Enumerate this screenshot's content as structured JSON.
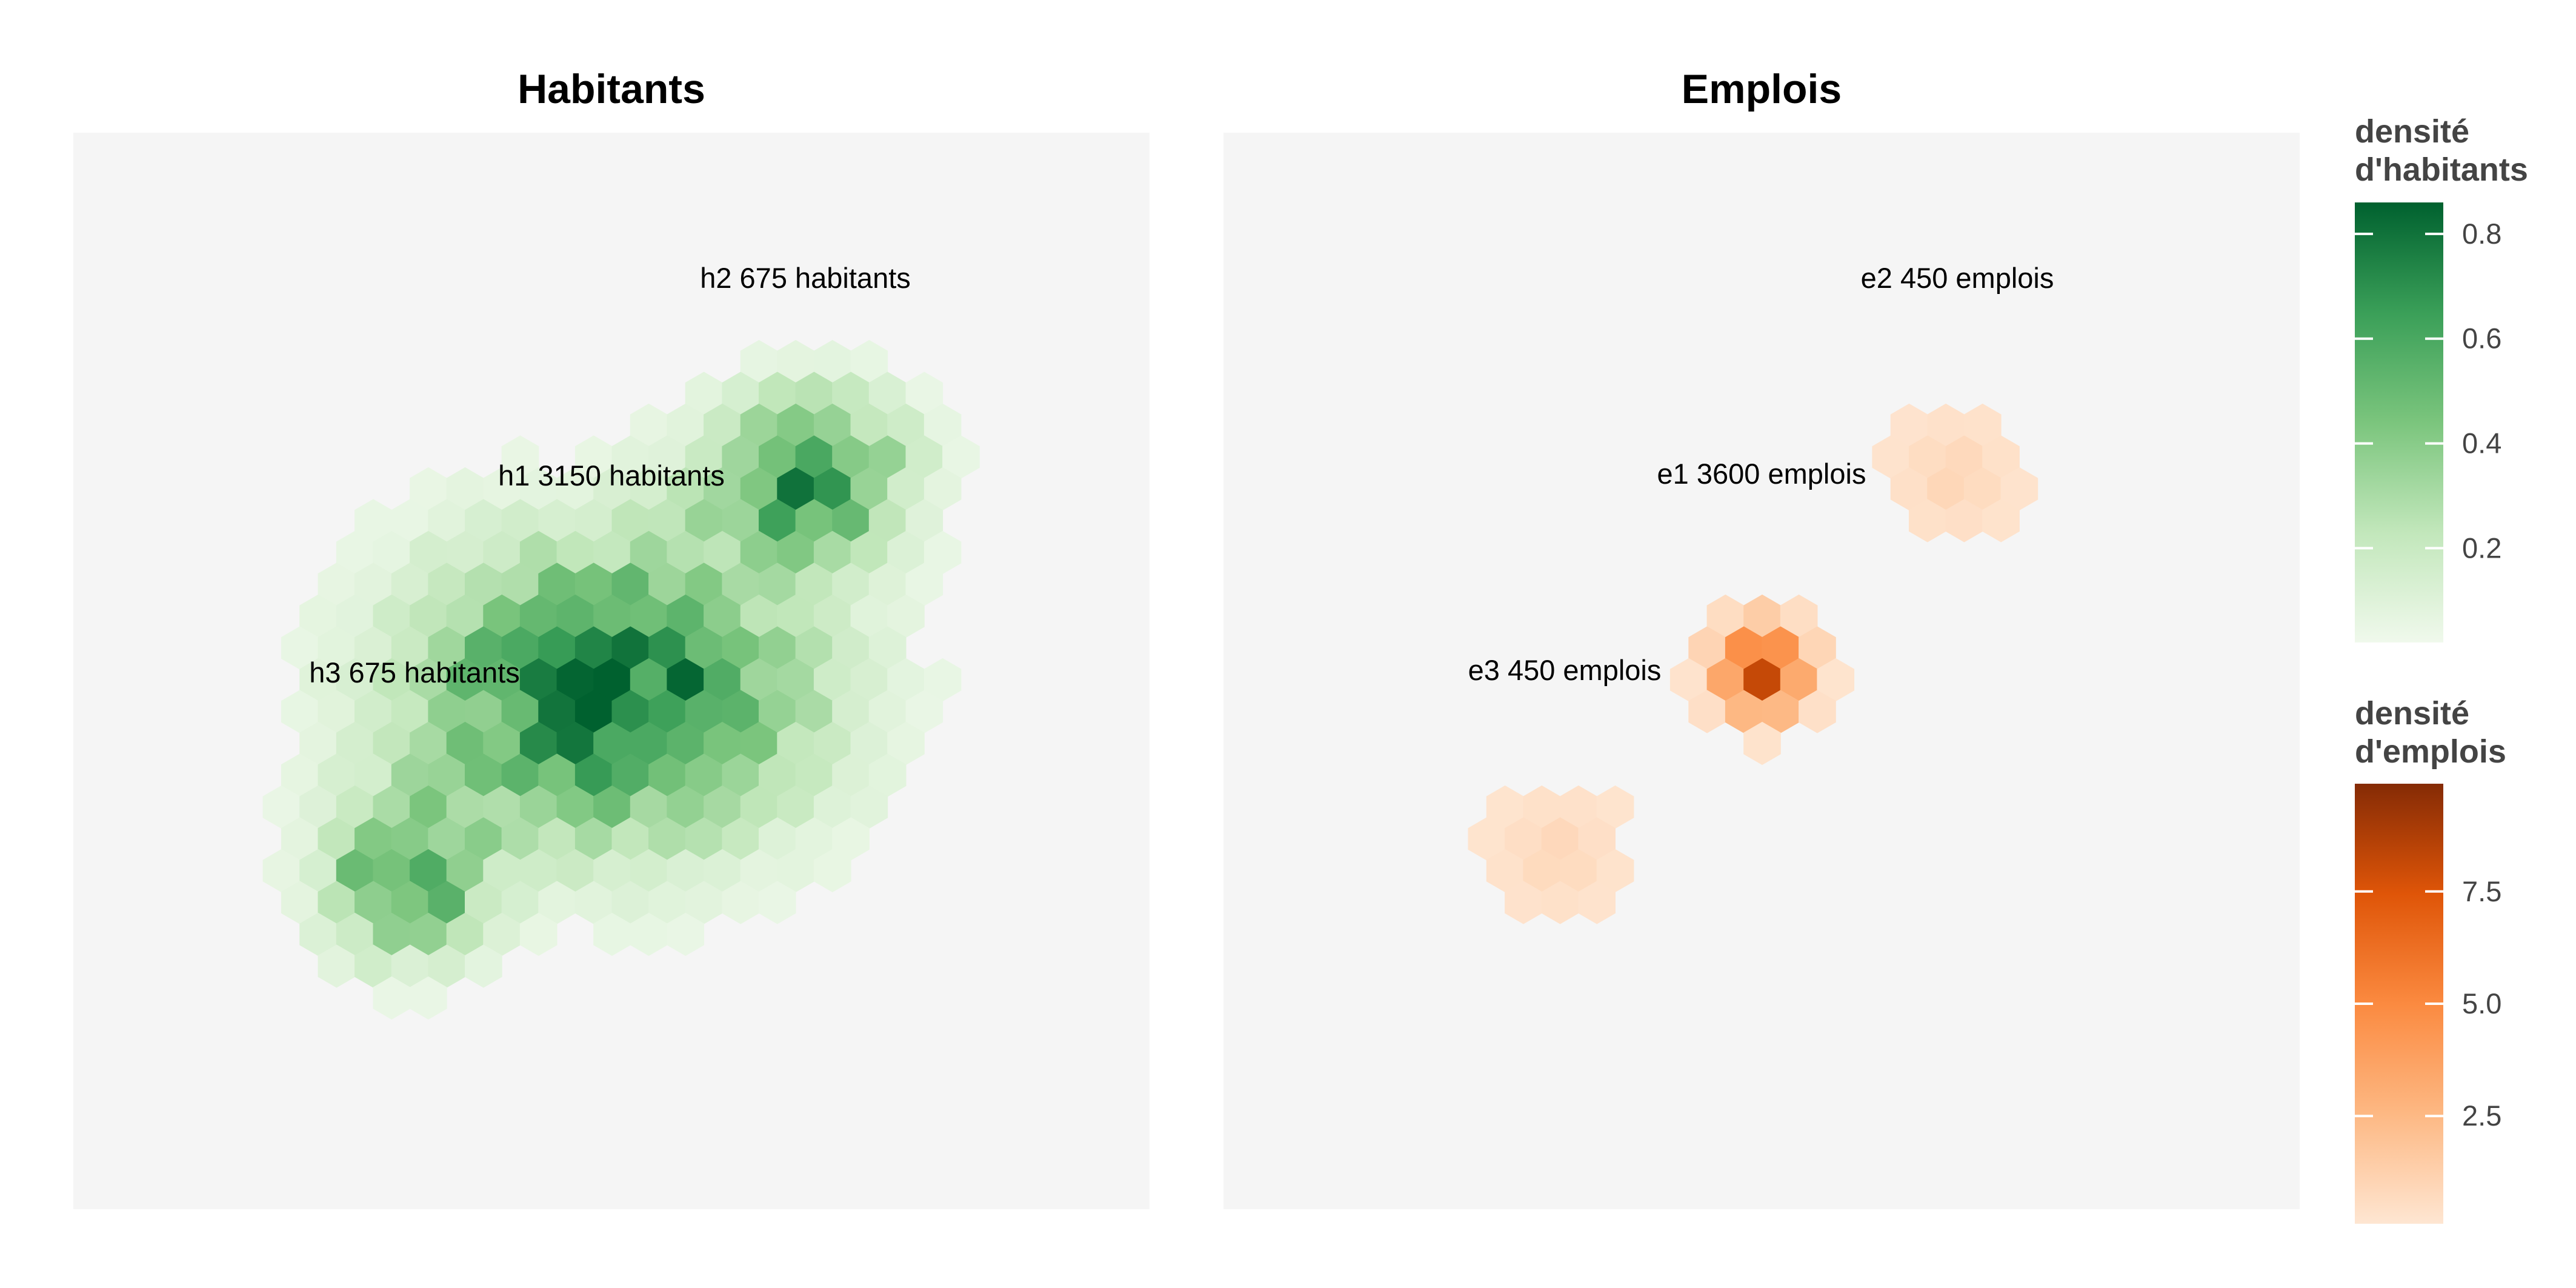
{
  "chart_data": [
    {
      "type": "heatmap",
      "subtype": "hexbin",
      "title": "Habitants",
      "xlabel": "",
      "ylabel": "",
      "xlim": [
        0,
        100
      ],
      "ylim": [
        0,
        100
      ],
      "grid": false,
      "axes_visible": false,
      "panel_background": "#f5f5f5",
      "colorscale": "Greens",
      "fill_range": [
        0,
        0.86
      ],
      "clusters": [
        {
          "label": "h1 3150 habitants",
          "center": [
            50,
            48
          ],
          "sx": 12,
          "sy": 9,
          "peak": 0.86
        },
        {
          "label": "h2 675 habitants",
          "center": [
            68,
            68
          ],
          "sx": 6,
          "sy": 5,
          "peak": 0.72
        },
        {
          "label": "h3 675 habitants",
          "center": [
            31,
            31
          ],
          "sx": 5,
          "sy": 5,
          "peak": 0.62
        }
      ],
      "annotations": [
        {
          "text": "h2 675 habitants",
          "x": 68,
          "y": 86
        },
        {
          "text": "h1 3150 habitants",
          "x": 50,
          "y": 68
        },
        {
          "text": "h3 675 habitants",
          "x": 32,
          "y": 50
        }
      ],
      "legend": {
        "title_line1": "densité",
        "title_line2": "d'habitants",
        "ticks": [
          "0.8",
          "0.6",
          "0.4",
          "0.2"
        ],
        "tick_values": [
          0.8,
          0.6,
          0.4,
          0.2
        ],
        "range": [
          0.02,
          0.86
        ],
        "position": "right"
      }
    },
    {
      "type": "heatmap",
      "subtype": "hexbin",
      "title": "Emplois",
      "xlabel": "",
      "ylabel": "",
      "xlim": [
        0,
        100
      ],
      "ylim": [
        0,
        100
      ],
      "grid": false,
      "axes_visible": false,
      "panel_background": "#f5f5f5",
      "colorscale": "Oranges",
      "fill_range": [
        0,
        9.9
      ],
      "clusters": [
        {
          "label": "e1 3600 emplois",
          "center": [
            50,
            50
          ],
          "radius": 7,
          "peak": 9.9
        },
        {
          "label": "e2 450 emplois",
          "center": [
            68,
            68
          ],
          "radius": 7,
          "peak": 1.1
        },
        {
          "label": "e3 450 emplois",
          "center": [
            31,
            33
          ],
          "radius": 7,
          "peak": 1.0
        }
      ],
      "annotations": [
        {
          "text": "e2 450 emplois",
          "x": 68,
          "y": 86
        },
        {
          "text": "e1 3600 emplois",
          "x": 50,
          "y": 68
        },
        {
          "text": "e3 450 emplois",
          "x": 32,
          "y": 50
        }
      ],
      "legend": {
        "title_line1": "densité",
        "title_line2": "d'emplois",
        "ticks": [
          "7.5",
          "5.0",
          "2.5"
        ],
        "tick_values": [
          7.5,
          5.0,
          2.5
        ],
        "range": [
          0.1,
          9.9
        ],
        "position": "right"
      }
    }
  ]
}
